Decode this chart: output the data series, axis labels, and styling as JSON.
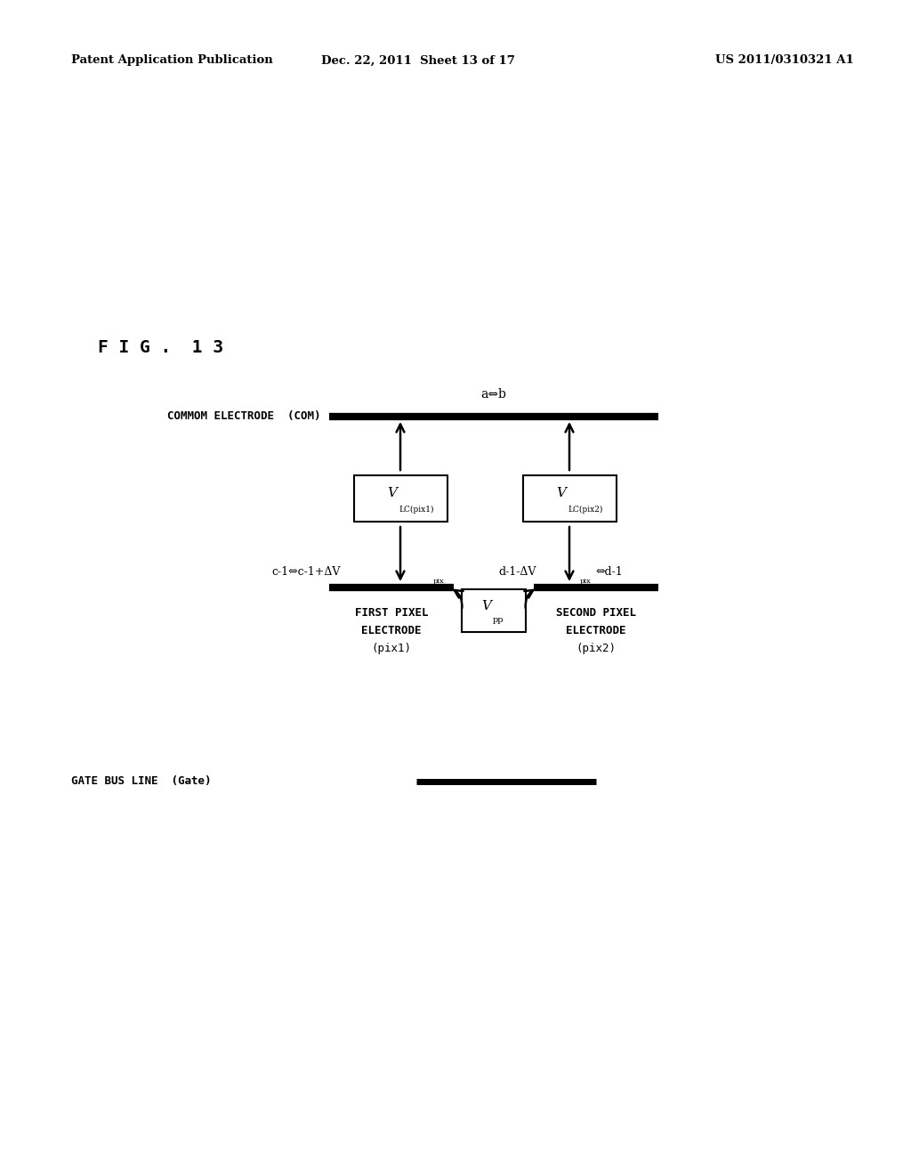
{
  "header_left": "Patent Application Publication",
  "header_mid": "Dec. 22, 2011  Sheet 13 of 17",
  "header_right": "US 2011/0310321 A1",
  "fig_label": "F I G .  1 3",
  "com_label": "COMMOM ELECTRODE  (COM)",
  "com_label_ab": "a⇔b",
  "pix1_label1": "FIRST PIXEL",
  "pix1_label2": "ELECTRODE",
  "pix1_label3": "(pix1)",
  "pix2_label1": "SECOND PIXEL",
  "pix2_label2": "ELECTRODE",
  "pix2_label3": "(pix2)",
  "gate_label": "GATE BUS LINE  (Gate)",
  "vlc_pix1_main": "V",
  "vlc_pix1_sub": "LC(pix1)",
  "vlc_pix2_main": "V",
  "vlc_pix2_sub": "LC(pix2)",
  "vpp_main": "V",
  "vpp_sub": "pp",
  "c_label_full": "c-1⇔c-1+ΔV",
  "c_label_sub": "pix",
  "d_label_part1": "d-1-ΔV",
  "d_label_sub": "pix",
  "d_label_part2": "⇔d-1",
  "background_color": "#ffffff",
  "line_color": "#000000",
  "text_color": "#000000"
}
